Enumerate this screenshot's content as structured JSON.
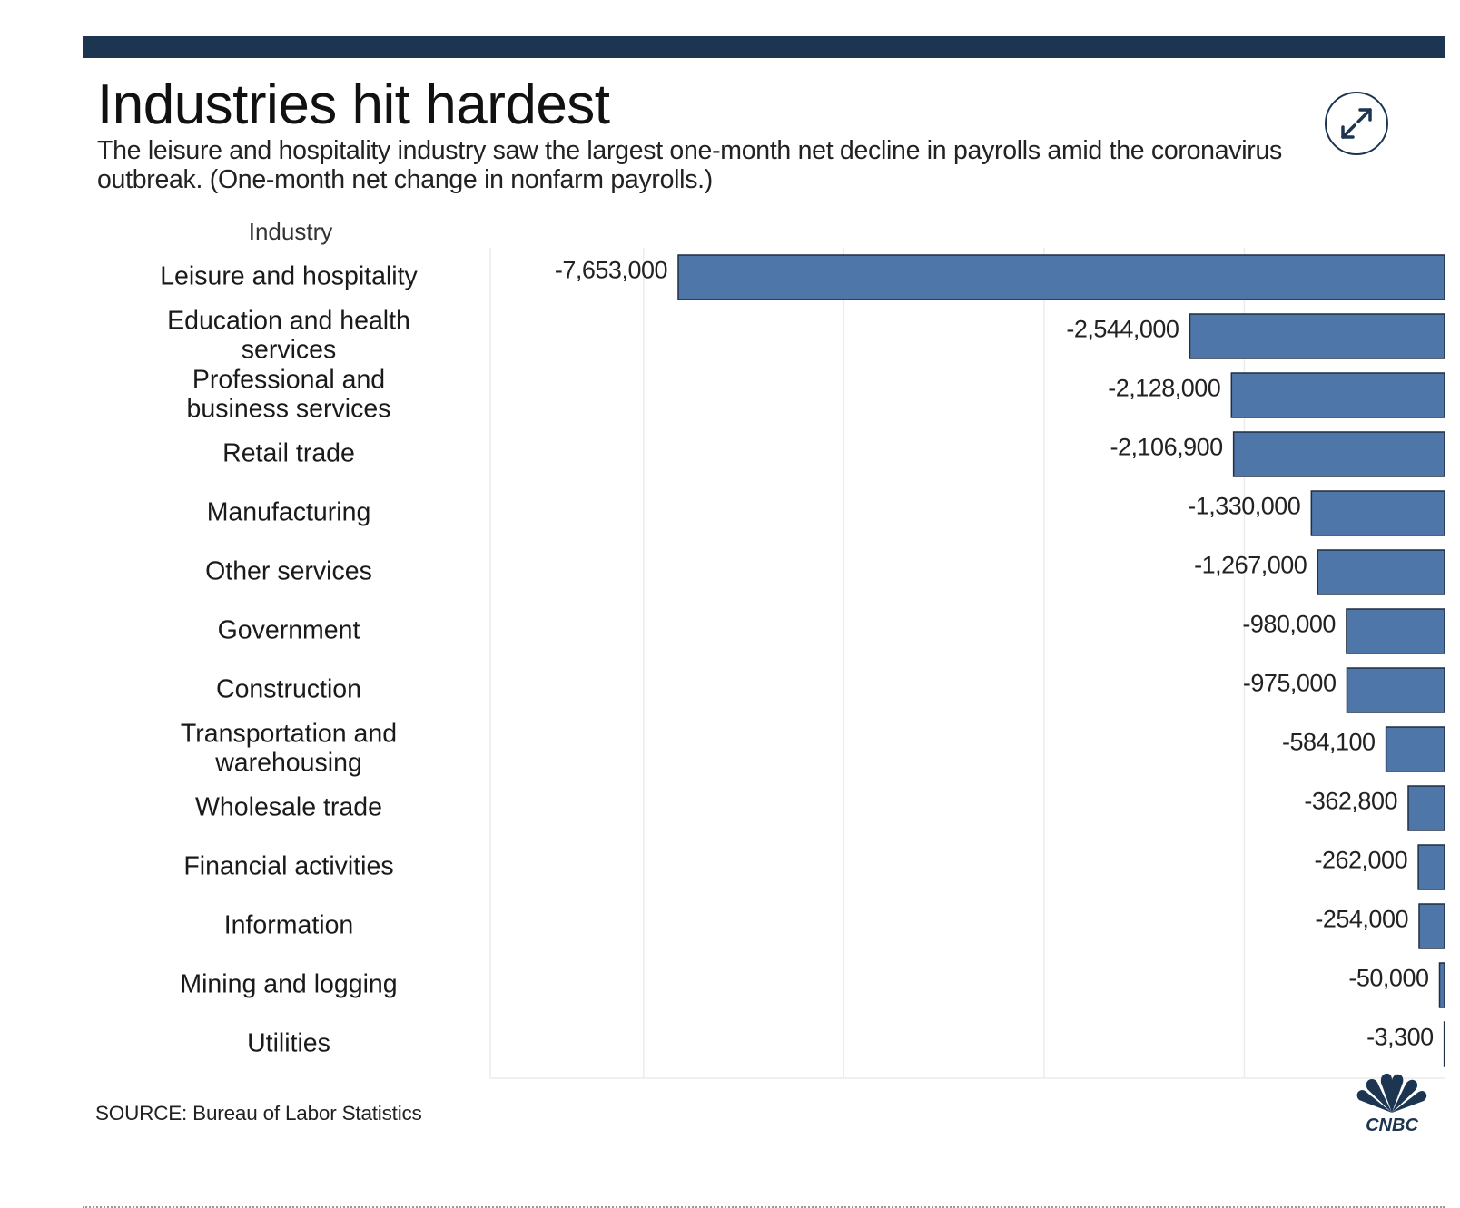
{
  "header": {
    "title": "Industries hit hardest",
    "subtitle": "The leisure and hospitality industry saw the largest one-month net decline in payrolls amid the coronavirus outbreak. (One-month net change in nonfarm payrolls.)"
  },
  "expand_icon": "expand-arrows-icon",
  "footer": {
    "source": "SOURCE: Bureau of Labor Statistics",
    "logo_text": "CNBC"
  },
  "colors": {
    "bar": "#4f76a8",
    "bar_border": "#1f2f45",
    "top_bar": "#1c3550",
    "grid": "#ececec"
  },
  "chart_data": {
    "type": "bar",
    "orientation": "horizontal",
    "category_header": "Industry",
    "categories": [
      "Leisure and hospitality",
      "Education and health services",
      "Professional and business services",
      "Retail trade",
      "Manufacturing",
      "Other services",
      "Government",
      "Construction",
      "Transportation and warehousing",
      "Wholesale trade",
      "Financial activities",
      "Information",
      "Mining and logging",
      "Utilities"
    ],
    "values": [
      -7653000,
      -2544000,
      -2128000,
      -2106900,
      -1330000,
      -1267000,
      -980000,
      -975000,
      -584100,
      -362800,
      -262000,
      -254000,
      -50000,
      -3300
    ],
    "value_labels": [
      "-7,653,000",
      "-2,544,000",
      "-2,128,000",
      "-2,106,900",
      "-1,330,000",
      "-1,267,000",
      "-980,000",
      "-975,000",
      "-584,100",
      "-362,800",
      "-262,000",
      "-254,000",
      "-50,000",
      "-3,300"
    ],
    "xlim": [
      -9530000,
      0
    ],
    "gridlines": [
      -8000000,
      -6000000,
      -4000000,
      -2000000
    ],
    "grid": true,
    "legend": "none"
  }
}
